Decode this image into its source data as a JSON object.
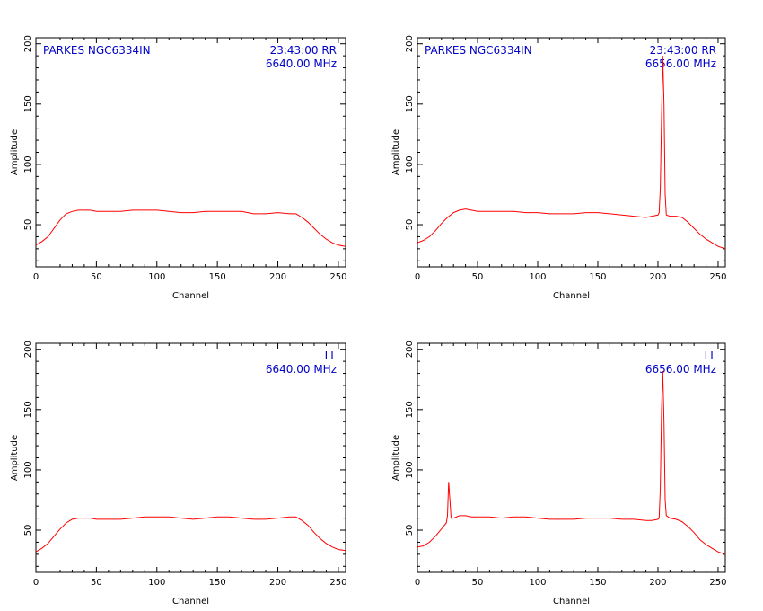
{
  "chart_data": [
    {
      "type": "line",
      "panel": "top-left",
      "title": "",
      "xlabel": "Channel",
      "ylabel": "Amplitude",
      "xlim": [
        0,
        256
      ],
      "ylim": [
        15,
        205
      ],
      "xticks": [
        0,
        50,
        100,
        150,
        200,
        250
      ],
      "yticks": [
        50,
        100,
        150,
        200
      ],
      "annotations": {
        "left": "PARKES NGC6334IN",
        "right1": "23:43:00  RR",
        "right2": "6640.00  MHz"
      },
      "series": [
        {
          "color": "#ff0000",
          "x": [
            0,
            5,
            10,
            15,
            20,
            25,
            30,
            35,
            40,
            45,
            50,
            60,
            70,
            80,
            90,
            100,
            110,
            120,
            130,
            140,
            150,
            160,
            170,
            180,
            190,
            200,
            210,
            215,
            220,
            225,
            230,
            235,
            240,
            245,
            250,
            256
          ],
          "y": [
            33,
            36,
            40,
            47,
            54,
            59,
            61,
            62,
            62,
            62,
            61,
            61,
            61,
            62,
            62,
            62,
            61,
            60,
            60,
            61,
            61,
            61,
            61,
            59,
            59,
            60,
            59,
            59,
            56,
            52,
            47,
            42,
            38,
            35,
            33,
            32
          ]
        }
      ]
    },
    {
      "type": "line",
      "panel": "top-right",
      "title": "",
      "xlabel": "Channel",
      "ylabel": "Amplitude",
      "xlim": [
        0,
        256
      ],
      "ylim": [
        15,
        205
      ],
      "xticks": [
        0,
        50,
        100,
        150,
        200,
        250
      ],
      "yticks": [
        50,
        100,
        150,
        200
      ],
      "annotations": {
        "left": "PARKES NGC6334IN",
        "right1": "23:43:00  RR",
        "right2": "6656.00  MHz"
      },
      "series": [
        {
          "color": "#ff0000",
          "x": [
            0,
            5,
            10,
            15,
            20,
            25,
            30,
            35,
            40,
            45,
            50,
            60,
            70,
            80,
            90,
            100,
            110,
            120,
            130,
            140,
            150,
            160,
            170,
            180,
            190,
            195,
            200,
            201,
            202,
            203,
            204,
            205,
            206,
            207,
            210,
            215,
            220,
            225,
            230,
            235,
            240,
            245,
            250,
            256
          ],
          "y": [
            35,
            37,
            40,
            45,
            51,
            56,
            60,
            62,
            63,
            62,
            61,
            61,
            61,
            61,
            60,
            60,
            59,
            59,
            59,
            60,
            60,
            59,
            58,
            57,
            56,
            57,
            58,
            60,
            80,
            140,
            190,
            150,
            75,
            58,
            57,
            57,
            56,
            52,
            47,
            42,
            38,
            35,
            32,
            30
          ]
        }
      ]
    },
    {
      "type": "line",
      "panel": "bottom-left",
      "title": "",
      "xlabel": "Channel",
      "ylabel": "Amplitude",
      "xlim": [
        0,
        256
      ],
      "ylim": [
        15,
        205
      ],
      "xticks": [
        0,
        50,
        100,
        150,
        200,
        250
      ],
      "yticks": [
        50,
        100,
        150,
        200
      ],
      "annotations": {
        "left": "",
        "right1": "LL",
        "right2": "6640.00  MHz"
      },
      "series": [
        {
          "color": "#ff0000",
          "x": [
            0,
            5,
            10,
            15,
            20,
            25,
            30,
            35,
            40,
            45,
            50,
            60,
            70,
            80,
            90,
            100,
            110,
            120,
            130,
            140,
            150,
            160,
            170,
            180,
            190,
            200,
            210,
            215,
            220,
            225,
            230,
            235,
            240,
            245,
            250,
            256
          ],
          "y": [
            32,
            35,
            39,
            45,
            51,
            56,
            59,
            60,
            60,
            60,
            59,
            59,
            59,
            60,
            61,
            61,
            61,
            60,
            59,
            60,
            61,
            61,
            60,
            59,
            59,
            60,
            61,
            61,
            58,
            54,
            48,
            43,
            39,
            36,
            34,
            33
          ]
        }
      ]
    },
    {
      "type": "line",
      "panel": "bottom-right",
      "title": "",
      "xlabel": "Channel",
      "ylabel": "Amplitude",
      "xlim": [
        0,
        256
      ],
      "ylim": [
        15,
        205
      ],
      "xticks": [
        0,
        50,
        100,
        150,
        200,
        250
      ],
      "yticks": [
        50,
        100,
        150,
        200
      ],
      "annotations": {
        "left": "",
        "right1": "LL",
        "right2": "6656.00  MHz"
      },
      "series": [
        {
          "color": "#ff0000",
          "x": [
            0,
            5,
            10,
            15,
            20,
            24,
            25,
            26,
            27,
            28,
            30,
            35,
            40,
            45,
            50,
            60,
            70,
            80,
            90,
            100,
            110,
            120,
            130,
            140,
            150,
            160,
            170,
            180,
            190,
            195,
            200,
            201,
            202,
            203,
            204,
            205,
            206,
            207,
            210,
            215,
            220,
            225,
            230,
            235,
            240,
            245,
            250,
            256
          ],
          "y": [
            36,
            37,
            40,
            45,
            51,
            56,
            62,
            90,
            75,
            60,
            60,
            62,
            62,
            61,
            61,
            61,
            60,
            61,
            61,
            60,
            59,
            59,
            59,
            60,
            60,
            60,
            59,
            59,
            58,
            58,
            59,
            60,
            85,
            150,
            182,
            140,
            75,
            62,
            60,
            59,
            57,
            53,
            48,
            42,
            38,
            35,
            32,
            30
          ]
        }
      ]
    }
  ]
}
